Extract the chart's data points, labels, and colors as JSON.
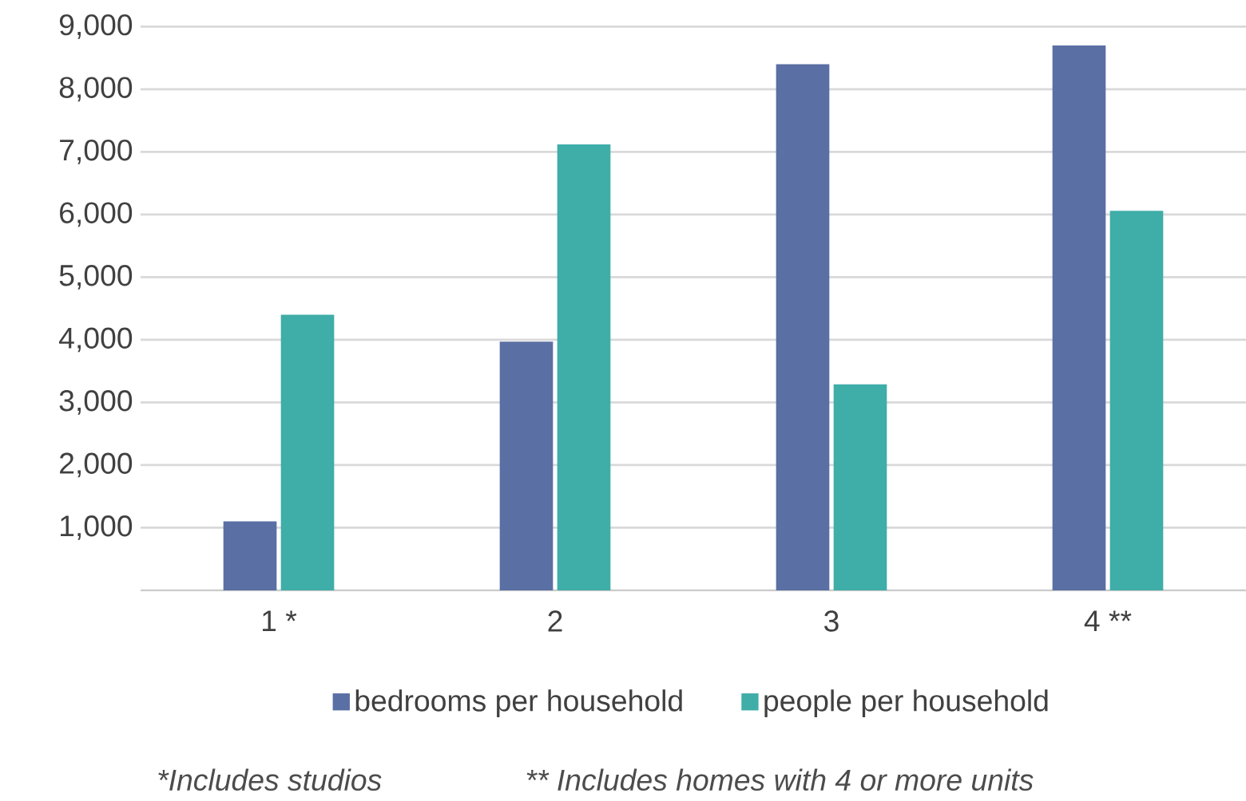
{
  "chart_data": {
    "type": "bar",
    "categories": [
      "1 *",
      "2",
      "3",
      "4 **"
    ],
    "series": [
      {
        "name": "bedrooms per household",
        "color": "#5a6fa3",
        "values": [
          1100,
          3970,
          8400,
          8700
        ]
      },
      {
        "name": "people per household",
        "color": "#3fada8",
        "values": [
          4400,
          7120,
          3290,
          6060
        ]
      }
    ],
    "ylim": [
      0,
      9000
    ],
    "yticks": [
      {
        "value": 1000,
        "label": "1,000"
      },
      {
        "value": 2000,
        "label": "2,000"
      },
      {
        "value": 3000,
        "label": "3,000"
      },
      {
        "value": 4000,
        "label": "4,000"
      },
      {
        "value": 5000,
        "label": "5,000"
      },
      {
        "value": 6000,
        "label": "6,000"
      },
      {
        "value": 7000,
        "label": "7,000"
      },
      {
        "value": 8000,
        "label": "8,000"
      },
      {
        "value": 9000,
        "label": "9,000"
      }
    ],
    "grid": "y",
    "legend": "bottom",
    "annotations": [
      "*Includes studios",
      "** Includes homes with 4 or more units"
    ]
  }
}
